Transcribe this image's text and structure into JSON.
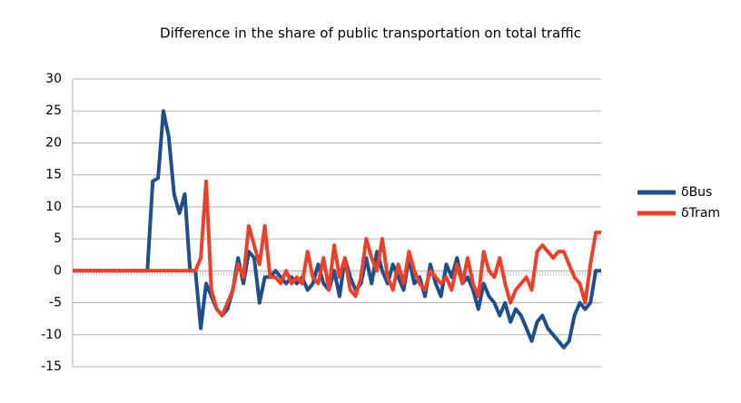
{
  "chart_data": {
    "type": "line",
    "title": "Difference in the share of public transportation on total traffic",
    "series": [
      {
        "name": "δBus",
        "color": "#1f4e8c",
        "values": [
          0,
          0,
          0,
          0,
          0,
          0,
          0,
          0,
          0,
          0,
          0,
          0,
          0,
          0,
          0,
          14,
          14.5,
          25,
          21,
          12,
          9,
          12,
          0,
          0,
          -9,
          -2,
          -4,
          -6,
          -7,
          -6,
          -3,
          2,
          -2,
          3,
          2,
          -5,
          -1,
          -1,
          0,
          -1,
          -2,
          -1,
          -2,
          -1,
          -3,
          -2,
          1,
          -2,
          -3,
          0,
          -4,
          2,
          -1,
          -3,
          -2,
          2,
          -2,
          3,
          0,
          -2,
          1,
          -1,
          -3,
          2,
          -2,
          -1,
          -4,
          1,
          -2,
          -4,
          1,
          -1,
          2,
          -2,
          -1,
          -3,
          -6,
          -2,
          -4,
          -5,
          -7,
          -5,
          -8,
          -6,
          -7,
          -9,
          -11,
          -8,
          -7,
          -9,
          -10,
          -11,
          -12,
          -11,
          -7,
          -5,
          -6,
          -5,
          0,
          0
        ]
      },
      {
        "name": "δTram",
        "color": "#e8412c",
        "values": [
          0,
          0,
          0,
          0,
          0,
          0,
          0,
          0,
          0,
          0,
          0,
          0,
          0,
          0,
          0,
          0,
          0,
          0,
          0,
          0,
          0,
          0,
          0,
          0,
          2,
          14,
          -3,
          -6,
          -7,
          -5,
          -3,
          1,
          -1,
          7,
          4,
          1,
          7,
          -1,
          -1,
          -2,
          0,
          -2,
          -1,
          -2,
          3,
          -1,
          -2,
          2,
          -3,
          4,
          -1,
          2,
          -3,
          -4,
          -1,
          5,
          2,
          0,
          5,
          -1,
          -3,
          1,
          -2,
          3,
          0,
          -2,
          -3,
          0,
          -1,
          -2,
          -1,
          -3,
          1,
          -2,
          2,
          -2,
          -4,
          3,
          0,
          -1,
          2,
          -2,
          -5,
          -3,
          -2,
          -1,
          -3,
          3,
          4,
          3,
          2,
          3,
          3,
          1,
          -1,
          -2,
          -5,
          1,
          6,
          6
        ]
      }
    ],
    "ylim": [
      -15,
      30
    ],
    "yticks": [
      -15,
      -10,
      -5,
      0,
      5,
      10,
      15,
      20,
      25,
      30
    ],
    "grid": true,
    "legend": "right"
  }
}
